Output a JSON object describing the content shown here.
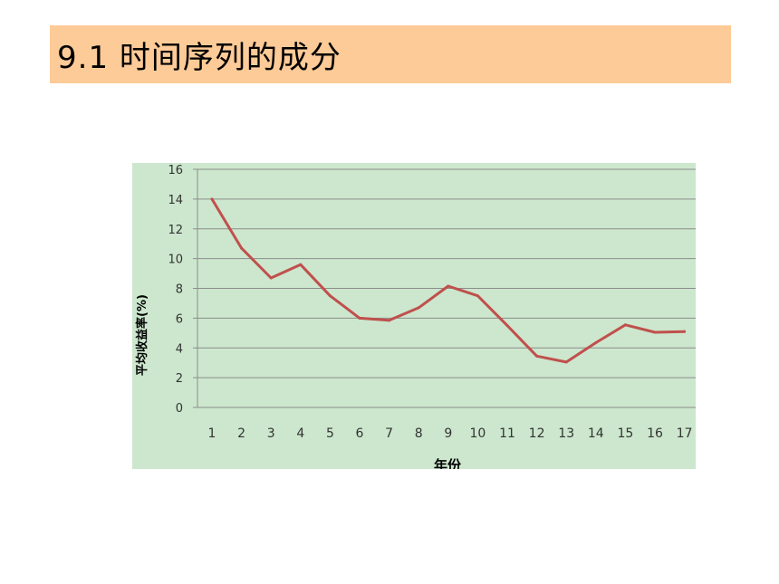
{
  "title": "9.1 时间序列的成分",
  "colors": {
    "title_bg": "#fdcb98",
    "chart_bg": "#cce7cd",
    "line": "#c0504d",
    "grid": "#8c8c8c"
  },
  "chart_data": {
    "type": "line",
    "title": "",
    "xlabel": "年份",
    "ylabel": "平均收益率(%)",
    "ylim": [
      0,
      16
    ],
    "yticks": [
      0,
      2,
      4,
      6,
      8,
      10,
      12,
      14,
      16
    ],
    "categories": [
      "1",
      "2",
      "3",
      "4",
      "5",
      "6",
      "7",
      "8",
      "9",
      "10",
      "11",
      "12",
      "13",
      "14",
      "15",
      "16",
      "17"
    ],
    "series": [
      {
        "values": [
          14.0,
          10.7,
          8.7,
          9.6,
          7.5,
          6.0,
          5.85,
          6.7,
          8.15,
          7.5,
          5.5,
          3.45,
          3.05,
          4.35,
          5.55,
          5.05,
          5.1
        ]
      }
    ],
    "grid": true,
    "legend": "none"
  }
}
